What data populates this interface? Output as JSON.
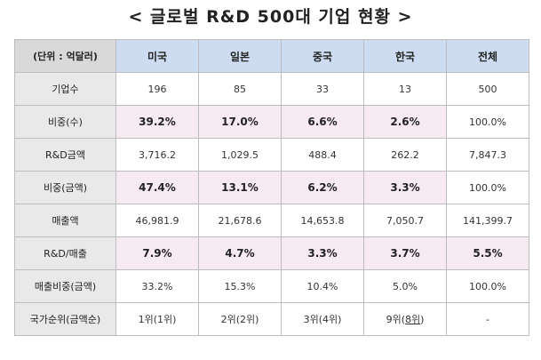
{
  "title": "< 글로벌 R&D 500대 기업 현황 >",
  "header": {
    "corner": "(단위 : 억달러)",
    "columns": [
      "미국",
      "일본",
      "중국",
      "한국",
      "전체"
    ]
  },
  "rows": [
    {
      "label": "기업수",
      "values": [
        "196",
        "85",
        "33",
        "13",
        "500"
      ]
    },
    {
      "label": "비중(수)",
      "values": [
        "39.2%",
        "17.0%",
        "6.6%",
        "2.6%",
        "100.0%"
      ]
    },
    {
      "label": "R&D금액",
      "values": [
        "3,716.2",
        "1,029.5",
        "488.4",
        "262.2",
        "7,847.3"
      ]
    },
    {
      "label": "비중(금액)",
      "values": [
        "47.4%",
        "13.1%",
        "6.2%",
        "3.3%",
        "100.0%"
      ]
    },
    {
      "label": "매출액",
      "values": [
        "46,981.9",
        "21,678.6",
        "14,653.8",
        "7,050.7",
        "141,399.7"
      ]
    },
    {
      "label": "R&D/매출",
      "values": [
        "7.9%",
        "4.7%",
        "3.3%",
        "3.7%",
        "5.5%"
      ]
    },
    {
      "label": "매출비중(금액)",
      "values": [
        "33.2%",
        "15.3%",
        "10.4%",
        "5.0%",
        "100.0%"
      ]
    },
    {
      "label": "국가순위(금액순)",
      "values": [
        "1위(1위)",
        "2위(2위)",
        "3위(4위)",
        "9위(",
        "-"
      ],
      "korea_extra": "8위",
      "korea_tail": ")"
    }
  ]
}
